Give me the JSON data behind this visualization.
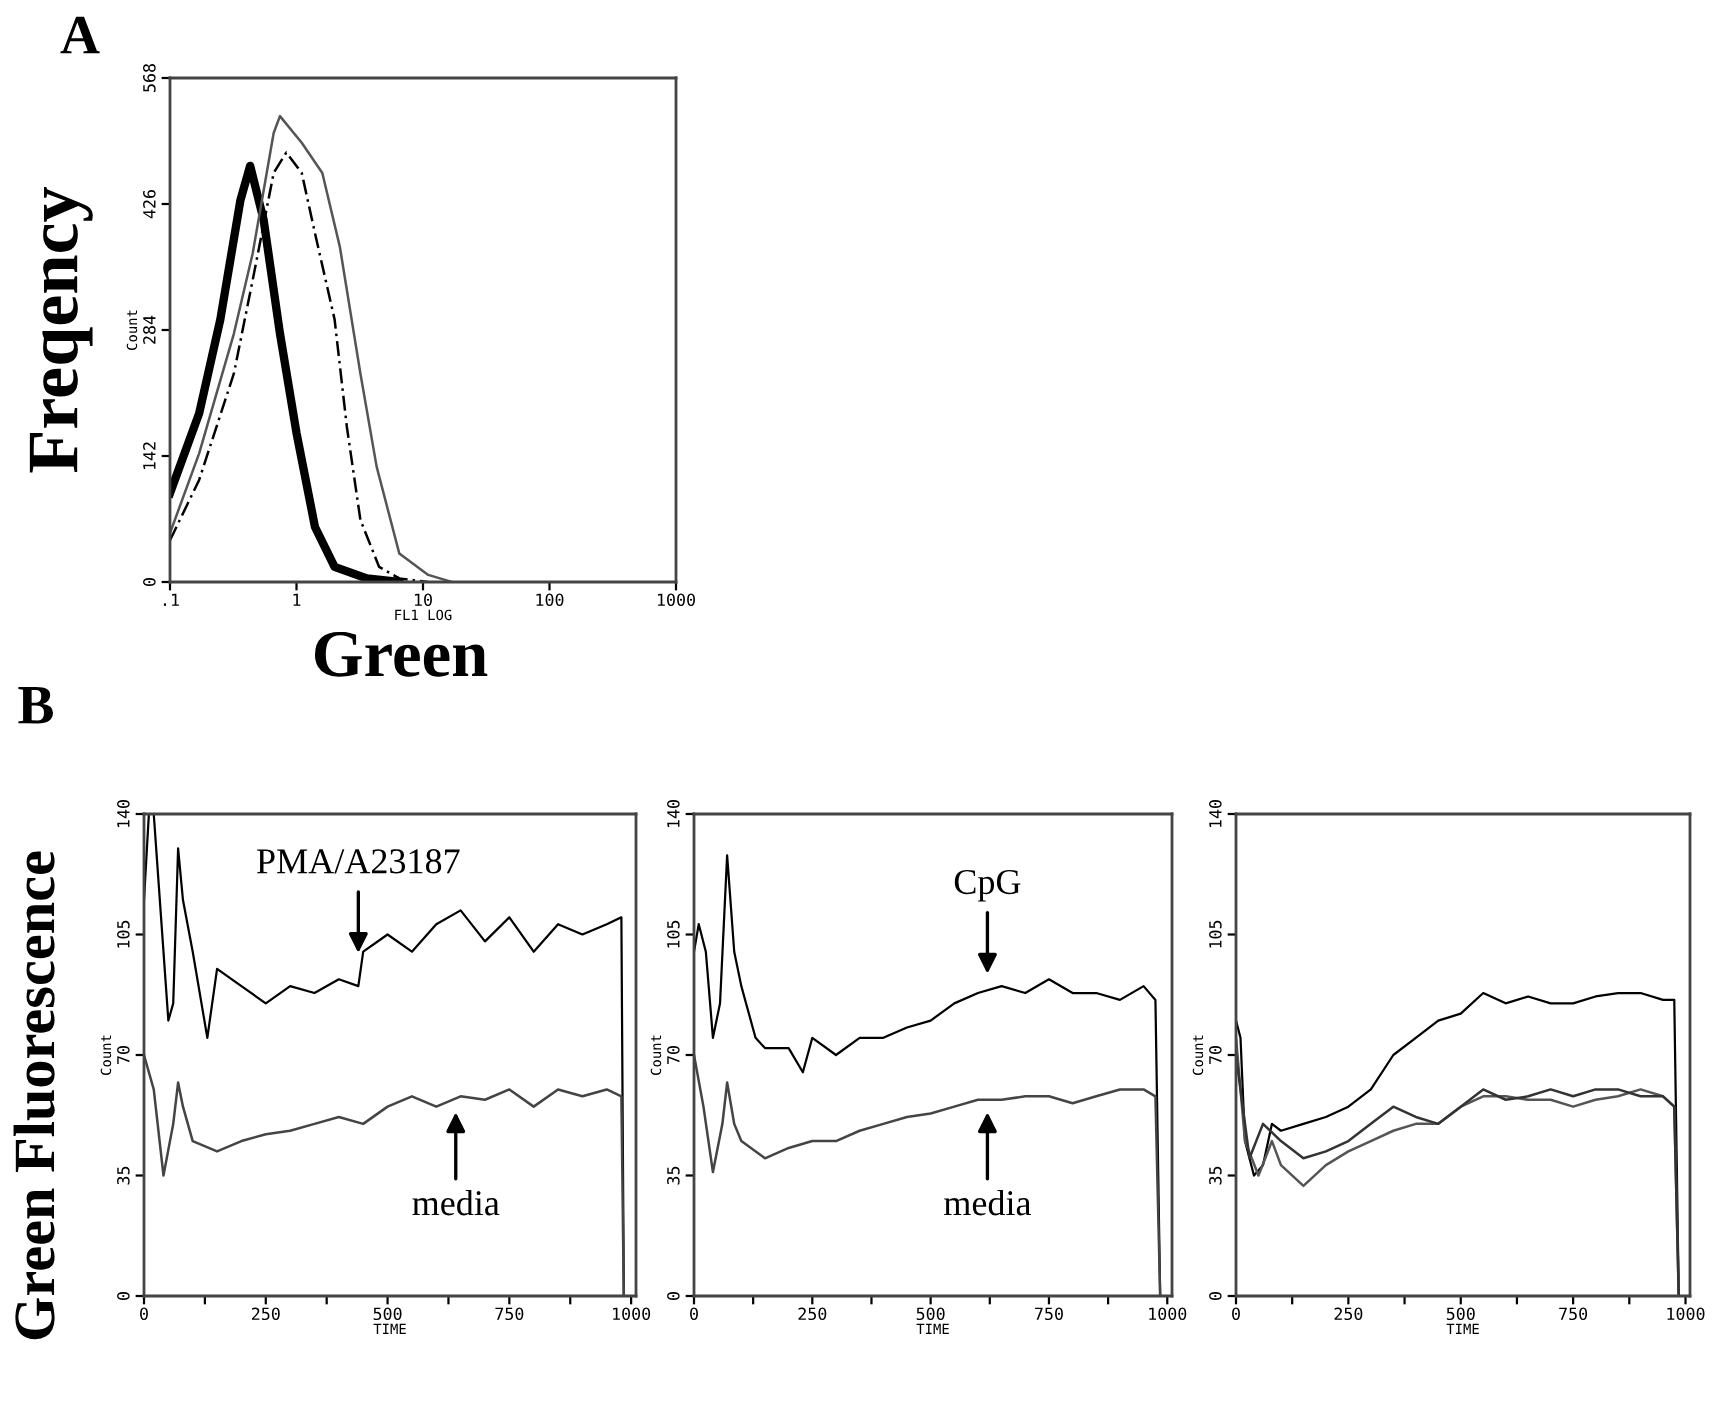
{
  "chart_data": [
    {
      "type": "line",
      "xlabel": "FL1 LOG",
      "ylabel": "Count",
      "log": "x",
      "xlim": [
        0.1,
        1000
      ],
      "xticks": [
        {
          "value": 0.1,
          "label": ".1"
        },
        1,
        10,
        100,
        1000
      ],
      "ylim": [
        0,
        568
      ],
      "yticks": [
        0,
        142,
        284,
        426,
        568
      ],
      "grid": false,
      "legend": false,
      "annotations": [
        "A",
        "Freqency",
        "Green"
      ],
      "series": [
        {
          "color": "#000000",
          "line_style": "solid",
          "x": [
            0.1,
            0.17,
            0.25,
            0.36,
            0.43,
            0.55,
            0.74,
            1.0,
            1.4,
            2.0,
            3.6,
            6.5
          ],
          "values": [
            100,
            190,
            296,
            430,
            469,
            408,
            280,
            168,
            62,
            17,
            4,
            0
          ]
        },
        {
          "color": "#000000",
          "line_style": "dashed",
          "x": [
            0.1,
            0.17,
            0.32,
            0.45,
            0.66,
            0.83,
            1.1,
            1.4,
            2.0,
            2.5,
            3.2,
            4.5,
            6.5,
            11
          ],
          "values": [
            47,
            115,
            235,
            340,
            461,
            484,
            461,
            393,
            296,
            175,
            70,
            17,
            4,
            0
          ]
        },
        {
          "color": "#555555",
          "line_style": "solid",
          "x": [
            0.1,
            0.17,
            0.32,
            0.45,
            0.66,
            0.74,
            1.1,
            1.6,
            2.2,
            3.2,
            4.3,
            6.5,
            11,
            17
          ],
          "values": [
            55,
            145,
            280,
            370,
            506,
            525,
            495,
            461,
            378,
            235,
            130,
            32,
            8,
            0
          ]
        }
      ]
    },
    {
      "type": "line",
      "xlabel": "TIME",
      "ylabel": "Count",
      "xlim": [
        0,
        1010
      ],
      "xticks": [
        0,
        {
          "value": 125,
          "label": null
        },
        250,
        {
          "value": 375,
          "label": null
        },
        500,
        {
          "value": 625,
          "label": null
        },
        750,
        {
          "value": 875,
          "label": null
        },
        1000
      ],
      "ylim": [
        0,
        140
      ],
      "yticks": [
        0,
        35,
        70,
        105,
        140
      ],
      "grid": false,
      "legend": false,
      "annotations": [
        "B",
        "Green Fluorescence",
        {
          "text": "PMA/A23187",
          "x": 440,
          "y": 98
        },
        {
          "text": "media",
          "x": 640,
          "y": 55
        }
      ],
      "series": [
        {
          "color": "#000000",
          "x": [
            0,
            10,
            20,
            30,
            50,
            60,
            70,
            80,
            100,
            130,
            150,
            200,
            250,
            300,
            350,
            400,
            440,
            450,
            500,
            550,
            600,
            650,
            700,
            750,
            800,
            850,
            900,
            950,
            980,
            985
          ],
          "values": [
            115,
            140,
            140,
            120,
            80,
            85,
            130,
            115,
            100,
            75,
            95,
            90,
            85,
            90,
            88,
            92,
            90,
            100,
            105,
            100,
            108,
            112,
            103,
            110,
            100,
            108,
            105,
            108,
            110,
            0
          ]
        },
        {
          "color": "#444444",
          "x": [
            0,
            20,
            40,
            60,
            70,
            80,
            100,
            150,
            200,
            250,
            300,
            350,
            400,
            450,
            500,
            550,
            600,
            650,
            700,
            750,
            800,
            850,
            900,
            950,
            980,
            985
          ],
          "values": [
            70,
            60,
            35,
            50,
            62,
            55,
            45,
            42,
            45,
            47,
            48,
            50,
            52,
            50,
            55,
            58,
            55,
            58,
            57,
            60,
            55,
            60,
            58,
            60,
            58,
            0
          ]
        }
      ]
    },
    {
      "type": "line",
      "xlabel": "TIME",
      "ylabel": "Count",
      "xlim": [
        0,
        1010
      ],
      "xticks": [
        0,
        {
          "value": 125,
          "label": null
        },
        250,
        {
          "value": 375,
          "label": null
        },
        500,
        {
          "value": 625,
          "label": null
        },
        750,
        {
          "value": 875,
          "label": null
        },
        1000
      ],
      "ylim": [
        0,
        140
      ],
      "yticks": [
        0,
        35,
        70,
        105,
        140
      ],
      "grid": false,
      "legend": false,
      "annotations": [
        {
          "text": "CpG",
          "x": 620,
          "y": 92
        },
        {
          "text": "media",
          "x": 620,
          "y": 55
        }
      ],
      "series": [
        {
          "color": "#000000",
          "x": [
            0,
            10,
            25,
            40,
            55,
            70,
            85,
            100,
            130,
            150,
            200,
            230,
            250,
            300,
            350,
            400,
            450,
            500,
            550,
            600,
            650,
            700,
            750,
            800,
            850,
            900,
            950,
            975,
            985
          ],
          "values": [
            100,
            108,
            100,
            75,
            85,
            128,
            100,
            90,
            75,
            72,
            72,
            65,
            75,
            70,
            75,
            75,
            78,
            80,
            85,
            88,
            90,
            88,
            92,
            88,
            88,
            86,
            90,
            86,
            0
          ]
        },
        {
          "color": "#444444",
          "x": [
            0,
            20,
            40,
            60,
            70,
            85,
            100,
            150,
            200,
            250,
            300,
            350,
            400,
            450,
            500,
            550,
            600,
            650,
            700,
            750,
            800,
            850,
            900,
            950,
            975,
            985
          ],
          "values": [
            70,
            55,
            36,
            50,
            62,
            50,
            45,
            40,
            43,
            45,
            45,
            48,
            50,
            52,
            53,
            55,
            57,
            57,
            58,
            58,
            56,
            58,
            60,
            60,
            58,
            0
          ]
        }
      ]
    },
    {
      "type": "line",
      "xlabel": "TIME",
      "ylabel": "Count",
      "xlim": [
        0,
        1010
      ],
      "xticks": [
        0,
        {
          "value": 125,
          "label": null
        },
        250,
        {
          "value": 375,
          "label": null
        },
        500,
        {
          "value": 625,
          "label": null
        },
        750,
        {
          "value": 875,
          "label": null
        },
        1000
      ],
      "ylim": [
        0,
        140
      ],
      "yticks": [
        0,
        35,
        70,
        105,
        140
      ],
      "grid": false,
      "legend": false,
      "series": [
        {
          "color": "#000000",
          "x": [
            0,
            10,
            20,
            40,
            60,
            80,
            100,
            150,
            200,
            250,
            300,
            350,
            400,
            450,
            500,
            550,
            600,
            650,
            700,
            750,
            800,
            850,
            900,
            950,
            975,
            985
          ],
          "values": [
            80,
            75,
            45,
            35,
            38,
            50,
            48,
            50,
            52,
            55,
            60,
            70,
            75,
            80,
            82,
            88,
            85,
            87,
            85,
            85,
            87,
            88,
            88,
            86,
            86,
            0
          ]
        },
        {
          "color": "#555555",
          "x": [
            0,
            20,
            50,
            80,
            100,
            150,
            200,
            250,
            300,
            350,
            400,
            450,
            500,
            550,
            600,
            650,
            700,
            750,
            800,
            850,
            900,
            950,
            975,
            985
          ],
          "values": [
            75,
            45,
            35,
            45,
            38,
            32,
            38,
            42,
            45,
            48,
            50,
            50,
            55,
            58,
            58,
            57,
            57,
            55,
            57,
            58,
            60,
            58,
            55,
            0
          ]
        },
        {
          "color": "#333333",
          "x": [
            0,
            30,
            60,
            100,
            150,
            200,
            250,
            300,
            350,
            400,
            450,
            500,
            550,
            600,
            650,
            700,
            750,
            800,
            850,
            900,
            950,
            975,
            985
          ],
          "values": [
            70,
            40,
            50,
            45,
            40,
            42,
            45,
            50,
            55,
            52,
            50,
            55,
            60,
            57,
            58,
            60,
            58,
            60,
            60,
            58,
            58,
            55,
            0
          ]
        }
      ]
    }
  ]
}
